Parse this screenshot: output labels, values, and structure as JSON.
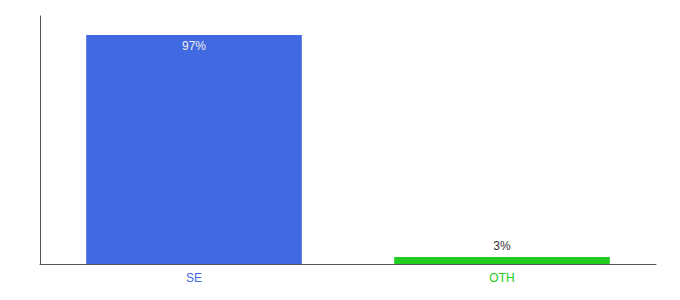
{
  "chart_data": {
    "type": "bar",
    "categories": [
      "SE",
      "OTH"
    ],
    "values": [
      97,
      3
    ],
    "value_labels": [
      "97%",
      "3%"
    ],
    "colors": [
      "#4169e1",
      "#22cc22"
    ],
    "ylim": [
      0,
      105
    ],
    "yticks": [],
    "tick_labels": "x",
    "data_labels": true,
    "grid": false
  }
}
